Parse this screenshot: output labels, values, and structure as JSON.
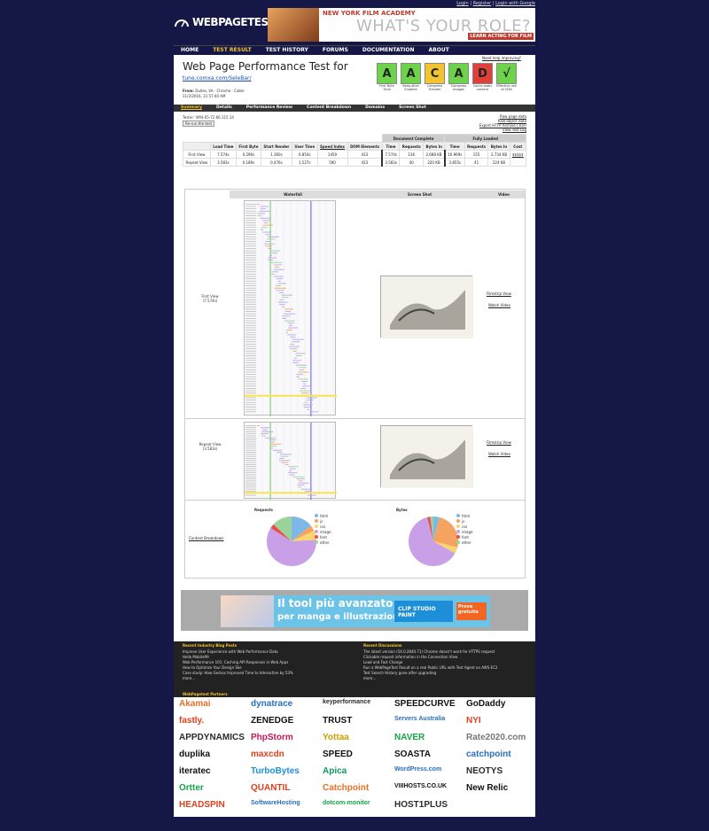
{
  "top_links": [
    "Login",
    "Register",
    "Login with Google"
  ],
  "logo": "WEBPAGETEST",
  "banner": {
    "line1": "NEW YORK FILM ACADEMY",
    "line2": "WHAT'S YOUR ROLE?",
    "cta": "LEARN ACTING FOR FILM"
  },
  "nav": [
    "HOME",
    "TEST RESULT",
    "TEST HISTORY",
    "FORUMS",
    "DOCUMENTATION",
    "ABOUT"
  ],
  "header": {
    "title": "Web Page Performance Test for",
    "url": "tune.comxa.com/SeleBar/",
    "from_label": "From:",
    "from": "Dulles, VA - Chrome - Cable",
    "date": "11/2/2016, 11:57:40 AM",
    "help": "Need help improving?"
  },
  "grades": [
    {
      "grade": "A",
      "label": "First Byte Time",
      "color": "#6dd34b"
    },
    {
      "grade": "A",
      "label": "Keep-alive Enabled",
      "color": "#6dd34b"
    },
    {
      "grade": "C",
      "label": "Compress Transfer",
      "color": "#f4c430"
    },
    {
      "grade": "A",
      "label": "Compress Images",
      "color": "#6dd34b"
    },
    {
      "grade": "D",
      "label": "Cache static content",
      "color": "#e0403a"
    },
    {
      "grade": "√",
      "label": "Effective use of CDN",
      "color": "#6dd34b"
    }
  ],
  "subnav": [
    "Summary",
    "Details",
    "Performance Review",
    "Content Breakdown",
    "Domains",
    "Screen Shot"
  ],
  "test_info": {
    "tester": "Tester: VM4-05-72.66.115.14",
    "rerun": "Re-run the test",
    "links": [
      "Raw page data",
      "Raw object data",
      "Export HTTP Archive (.har)",
      "View Test Log"
    ]
  },
  "results": {
    "groups": [
      "Document Complete",
      "Fully Loaded"
    ],
    "headers": [
      "",
      "Load Time",
      "First Byte",
      "Start Render",
      "User Time",
      "Speed Index",
      "DOM Elements",
      "Time",
      "Requests",
      "Bytes In",
      "Time",
      "Requests",
      "Bytes In",
      "Cost"
    ],
    "rows": [
      [
        "First View",
        "7.574s",
        "0.296s",
        "1.360s",
        "6.854s",
        "1459",
        "433",
        "7.574s",
        "136",
        "2,688 KB",
        "10.969s",
        "155",
        "2,734 KB",
        "$$$$$"
      ],
      [
        "Repeat View",
        "3.583s",
        "0.189s",
        "0.476s",
        "1.527s",
        "590",
        "433",
        "3.583s",
        "40",
        "220 KB",
        "3.855s",
        "41",
        "224 KB",
        ""
      ]
    ]
  },
  "media": {
    "headers": [
      "Waterfall",
      "Screen Shot",
      "Video"
    ],
    "first": {
      "label": "First View",
      "time": "(7.574s)",
      "links": [
        "Filmstrip View",
        "Watch Video"
      ]
    },
    "repeat": {
      "label": "Repeat View",
      "time": "(3.583s)",
      "links": [
        "Filmstrip View",
        "Watch Video"
      ]
    }
  },
  "breakdown": {
    "link": "Content Breakdown",
    "charts": [
      {
        "title": "Requests",
        "legend": [
          "html",
          "js",
          "css",
          "image",
          "font",
          "other"
        ],
        "values": [
          14,
          4,
          6,
          60,
          3,
          13
        ]
      },
      {
        "title": "Bytes",
        "legend": [
          "html",
          "js",
          "css",
          "image",
          "font",
          "other"
        ],
        "values": [
          4,
          25,
          4,
          63,
          2,
          2
        ]
      }
    ],
    "colors": [
      "#7db8e8",
      "#f4a460",
      "#f9d56e",
      "#c9a0e8",
      "#e85050",
      "#9ad49a"
    ]
  },
  "ad2": {
    "line1": "Il tool più avanzato",
    "line2": "per manga e illustrazione",
    "brand": "CLIP STUDIO PAINT",
    "cta": "Prova gratuita"
  },
  "footer": {
    "left_head": "Recent Industry Blog Posts",
    "left": [
      "Improve User Experience with Web Performance Data",
      "Hello Mobile99",
      "Web Performance 101: Caching API Responses in Web Apps",
      "How to Optimize Your Design Ske",
      "Case study: How Geckos Improved Time to Interactive by 53%",
      "more..."
    ],
    "right_head": "Recent Discussions",
    "right": [
      "The latest version (54.0.2840.71) Chrome doesn't work for HTTPS request",
      "Clickable request information in the Connection View",
      "Load and Fast Change",
      "Run a WebPageTest Result on a real Public URL with Test Agent on AWS EC2",
      "Test Search History gone after upgrading",
      "more..."
    ]
  },
  "partners": {
    "head": "WebPagetest Partners",
    "logos": [
      "Akamai",
      "dynatrace",
      "keyperformance",
      "SPEEDCURVE",
      "GoDaddy",
      "fastly.",
      "ZENEDGE",
      "TRUST",
      "Servers Australia",
      "NYI",
      "APPDYNAMICS",
      "PhpStorm",
      "Yottaa",
      "NAVER",
      "Rate2020.com",
      "duplika",
      "maxcdn",
      "SPEED",
      "SOASTA",
      "catchpoint",
      "iteratec",
      "TurboBytes",
      "Apica",
      "WordPress.com",
      "NEOTYS",
      "Ortter",
      "QUANTIL",
      "Catchpoint",
      "VIIIHOSTS.CO.UK",
      "New Relic",
      "HEADSPIN",
      "SoftwareHosting",
      "dotcom-monitor",
      "HOST1PLUS"
    ]
  }
}
